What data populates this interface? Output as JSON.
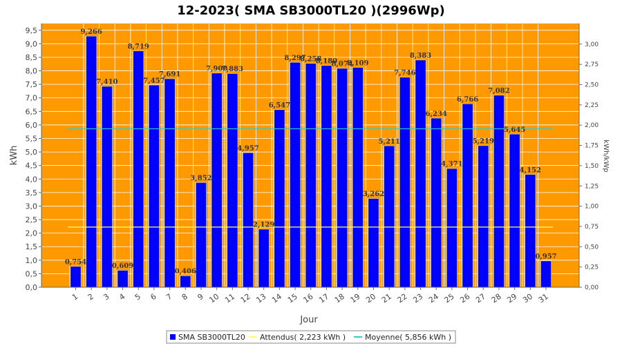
{
  "colors": {
    "background": "#ffffff",
    "plot_background": "#ff9900",
    "gridline": "#ffffff",
    "bar_fill": "#0000ff",
    "bar_edge": "#1a1a8c",
    "bar_highlight": "#d9d9d9",
    "expected_line": "#ffff66",
    "average_line": "#33cccc"
  },
  "chart_data": {
    "type": "bar",
    "title": "12-2023( SMA SB3000TL20 )(2996Wp)",
    "xlabel": "Jour",
    "ylabel": "kWh",
    "y2label": "kWh/kWp",
    "categories": [
      "1",
      "2",
      "3",
      "4",
      "5",
      "6",
      "7",
      "8",
      "9",
      "10",
      "11",
      "12",
      "13",
      "14",
      "15",
      "16",
      "17",
      "18",
      "19",
      "20",
      "21",
      "22",
      "23",
      "24",
      "25",
      "26",
      "27",
      "28",
      "29",
      "30",
      "31"
    ],
    "series": [
      {
        "name": "SMA SB3000TL20",
        "values": [
          0.754,
          9.266,
          7.41,
          0.609,
          8.719,
          7.457,
          7.691,
          0.406,
          3.852,
          7.9,
          7.883,
          4.957,
          2.129,
          6.547,
          8.297,
          8.258,
          8.18,
          8.074,
          8.109,
          3.262,
          5.211,
          7.746,
          8.383,
          6.234,
          4.371,
          6.766,
          5.219,
          7.082,
          5.645,
          4.152,
          0.957
        ],
        "labels": [
          "0,754",
          "9,266",
          "7,410",
          "0,609",
          "8,719",
          "7,457",
          "7,691",
          "0,406",
          "3,852",
          "7,900",
          "7,883",
          "4,957",
          "2,129",
          "6,547",
          "8,297",
          "8,258",
          "8,180",
          "8,074",
          "8,109",
          "3,262",
          "5,211",
          "7,746",
          "8,383",
          "6,234",
          "4,371",
          "6,766",
          "5,219",
          "7,082",
          "5,645",
          "4,152",
          "0,957"
        ]
      }
    ],
    "reference_lines": [
      {
        "name": "Attendus",
        "value": 2.223,
        "legend": "Attendus( 2,223 kWh )"
      },
      {
        "name": "Moyenne",
        "value": 5.856,
        "legend": "Moyenne( 5,856 kWh )"
      }
    ],
    "ylim": [
      0,
      9.75
    ],
    "y_ticks": [
      "0,0",
      "0,5",
      "1,0",
      "1,5",
      "2,0",
      "2,5",
      "3,0",
      "3,5",
      "4,0",
      "4,5",
      "5,0",
      "5,5",
      "6,0",
      "6,5",
      "7,0",
      "7,5",
      "8,0",
      "8,5",
      "9,0",
      "9,5"
    ],
    "y2_ticks": [
      "0,00",
      "0,25",
      "0,50",
      "0,75",
      "1,00",
      "1,25",
      "1,50",
      "1,75",
      "2,00",
      "2,25",
      "2,50",
      "2,75",
      "3,00"
    ],
    "y2_step": 0.25,
    "kwp": 2.996,
    "grid": true,
    "legend_placement": "bottom-center"
  }
}
